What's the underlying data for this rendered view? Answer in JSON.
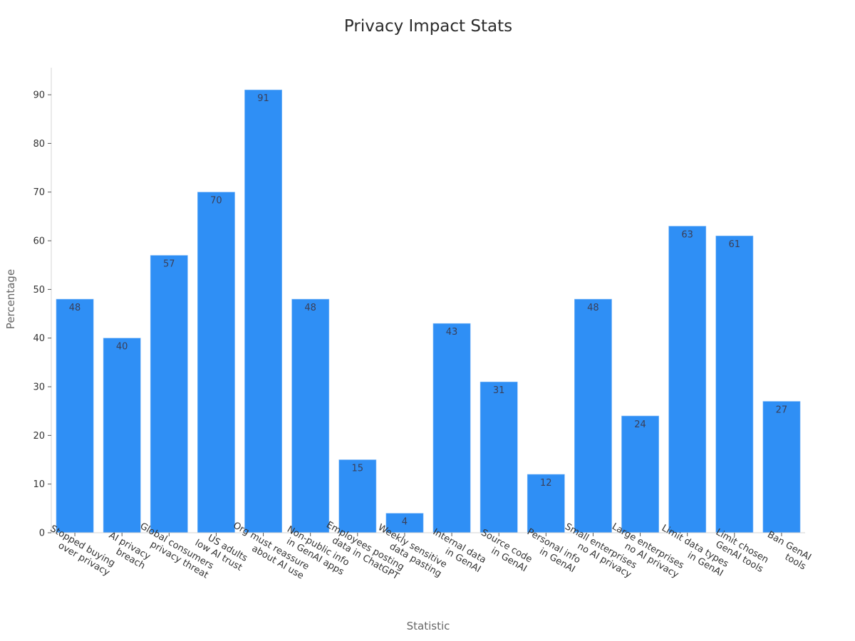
{
  "chart_data": {
    "type": "bar",
    "title": "Privacy Impact Stats",
    "xlabel": "Statistic",
    "ylabel": "Percentage",
    "ylim": [
      0,
      95.5
    ],
    "yticks": [
      0,
      10,
      20,
      30,
      40,
      50,
      60,
      70,
      80,
      90
    ],
    "grid": false,
    "legend": null,
    "bar_color": "#2f8ff5",
    "categories": [
      "Stopped buying\nover privacy",
      "AI privacy\nbreach",
      "Global consumers\nprivacy threat",
      "US adults\nlow AI trust",
      "Org must reassure\nabout AI use",
      "Non-public info\nin GenAI apps",
      "Employees posting\ndata in ChatGPT",
      "Weekly sensitive\ndata pasting",
      "Internal data\nin GenAI",
      "Source code\nin GenAI",
      "Personal info\nin GenAI",
      "Small enterprises\nno AI privacy",
      "Large enterprises\nno AI privacy",
      "Limit data types\nin GenAI",
      "Limit chosen\nGenAI tools",
      "Ban GenAI\ntools"
    ],
    "values": [
      48,
      40,
      57,
      70,
      91,
      48,
      15,
      4,
      43,
      31,
      12,
      48,
      24,
      63,
      61,
      27
    ],
    "data_labels": true
  }
}
